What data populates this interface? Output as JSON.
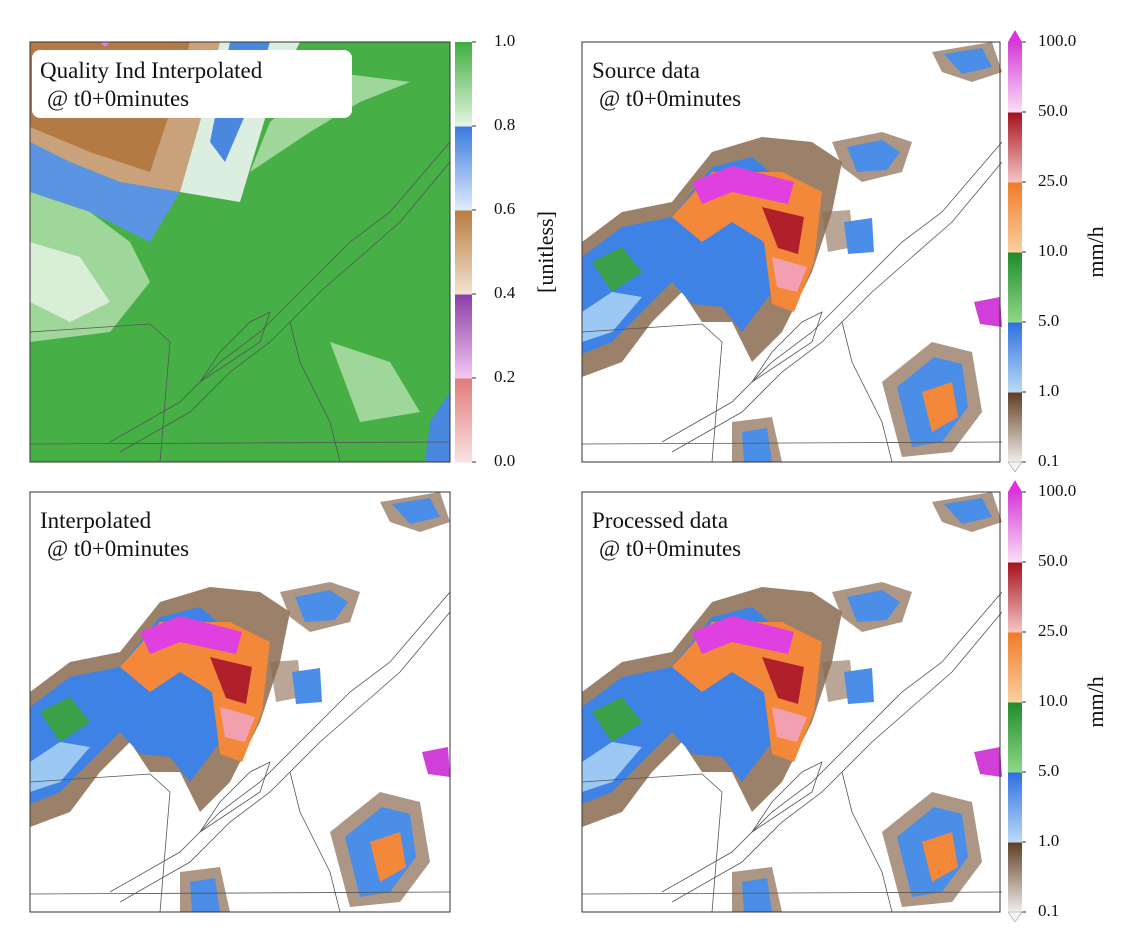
{
  "panels": [
    {
      "title_lines": [
        "Quality Ind Interpolated",
        "@ t0+0minutes"
      ]
    },
    {
      "title_lines": [
        "Source data",
        "@ t0+0minutes"
      ]
    },
    {
      "title_lines": [
        "Interpolated",
        "@ t0+0minutes"
      ]
    },
    {
      "title_lines": [
        "Processed data",
        "@ t0+0minutes"
      ]
    }
  ],
  "colorbars": [
    {
      "label": "[unitless]",
      "ticks": [
        {
          "value": 0,
          "label": "0.0"
        },
        {
          "value": 0.2,
          "label": "0.2"
        },
        {
          "value": 0.4,
          "label": "0.4"
        },
        {
          "value": 0.6,
          "label": "0.6"
        },
        {
          "value": 0.8,
          "label": "0.8"
        },
        {
          "value": 1,
          "label": "1.0"
        }
      ],
      "colors": [
        [
          "#fbe3e3",
          "#e07a7a"
        ],
        [
          "#f5c8f0",
          "#8a3da8"
        ],
        [
          "#f3e4d2",
          "#b97a3c"
        ],
        [
          "#e0ecfb",
          "#3a79df"
        ],
        [
          "#e6f6e4",
          "#3fae3f"
        ]
      ]
    },
    {
      "label": "mm/h",
      "ticks": [
        {
          "value": 0.1,
          "label": "0.1"
        },
        {
          "value": 1,
          "label": "1.0"
        },
        {
          "value": 5,
          "label": "5.0"
        },
        {
          "value": 10,
          "label": "10.0"
        },
        {
          "value": 25,
          "label": "25.0"
        },
        {
          "value": 50,
          "label": "50.0"
        },
        {
          "value": 100,
          "label": "100.0"
        }
      ],
      "colors": [
        [
          "#f2efec",
          "#5e3c22"
        ],
        [
          "#bcdaf6",
          "#2d6fe0"
        ],
        [
          "#8fd88a",
          "#1f8b2a"
        ],
        [
          "#fbd0a0",
          "#f07a28"
        ],
        [
          "#f6c6c6",
          "#a5101c"
        ],
        [
          "#fbe0f6",
          "#d43ad8"
        ]
      ],
      "extend_colors": [
        "#f4f4f4",
        "#e030e0"
      ]
    },
    {
      "label": "mm/h",
      "ticks": [
        {
          "value": 0.1,
          "label": "0.1"
        },
        {
          "value": 1,
          "label": "1.0"
        },
        {
          "value": 5,
          "label": "5.0"
        },
        {
          "value": 10,
          "label": "10.0"
        },
        {
          "value": 25,
          "label": "25.0"
        },
        {
          "value": 50,
          "label": "50.0"
        },
        {
          "value": 100,
          "label": "100.0"
        }
      ],
      "colors": [
        [
          "#f2efec",
          "#5e3c22"
        ],
        [
          "#bcdaf6",
          "#2d6fe0"
        ],
        [
          "#8fd88a",
          "#1f8b2a"
        ],
        [
          "#fbd0a0",
          "#f07a28"
        ],
        [
          "#f6c6c6",
          "#a5101c"
        ],
        [
          "#fbe0f6",
          "#d43ad8"
        ]
      ],
      "extend_colors": [
        "#f4f4f4",
        "#e030e0"
      ]
    }
  ]
}
